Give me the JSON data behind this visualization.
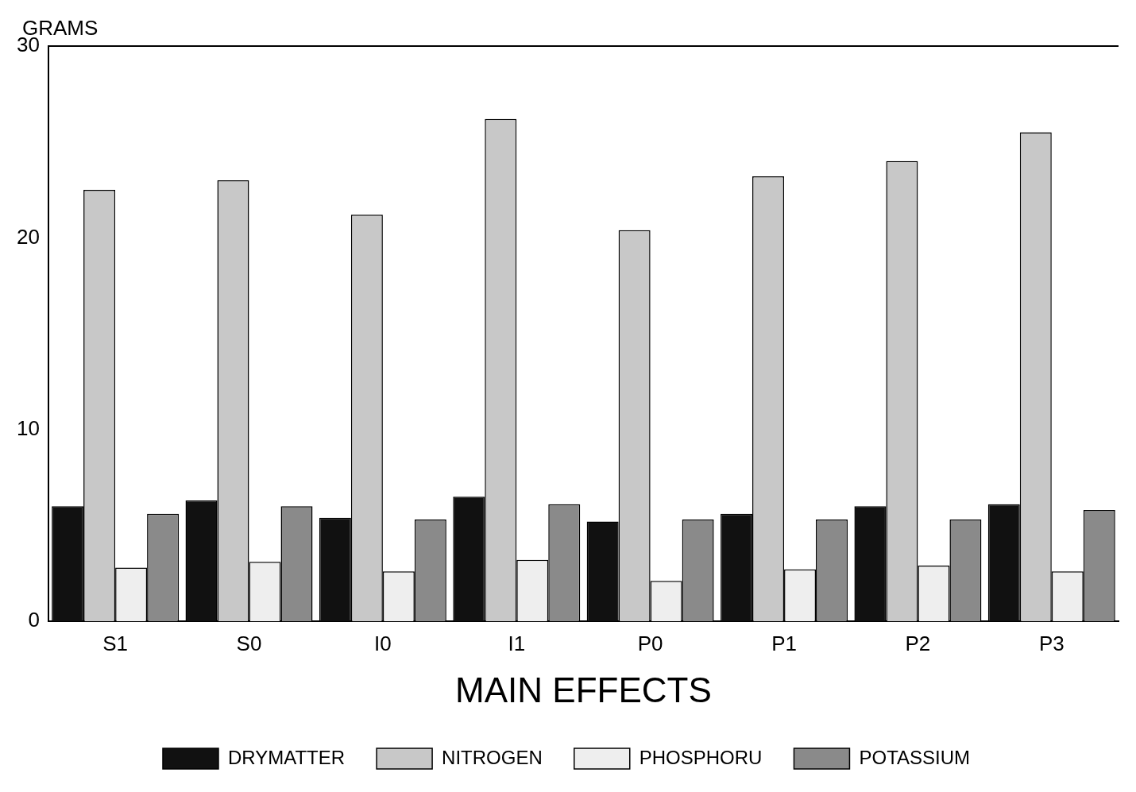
{
  "chart_data": {
    "type": "bar",
    "ylabel": "GRAMS",
    "xlabel": "MAIN EFFECTS",
    "categories": [
      "S1",
      "S0",
      "I0",
      "I1",
      "P0",
      "P1",
      "P2",
      "P3"
    ],
    "series": [
      {
        "name": "DRYMATTER",
        "color": "#111111",
        "values": [
          6.0,
          6.3,
          5.4,
          6.5,
          5.2,
          5.6,
          6.0,
          6.1
        ]
      },
      {
        "name": "NITROGEN",
        "color": "#c8c8c8",
        "values": [
          22.5,
          23.0,
          21.2,
          26.2,
          20.4,
          23.2,
          24.0,
          25.5
        ]
      },
      {
        "name": "PHOSPHORU",
        "color": "#eeeeee",
        "values": [
          2.8,
          3.1,
          2.6,
          3.2,
          2.1,
          2.7,
          2.9,
          2.6
        ]
      },
      {
        "name": "POTASSIUM",
        "color": "#8a8a8a",
        "values": [
          5.6,
          6.0,
          5.3,
          6.1,
          5.3,
          5.3,
          5.3,
          5.8
        ]
      }
    ],
    "ylim": [
      0,
      30
    ],
    "yticks": [
      0,
      10,
      20,
      30
    ],
    "grid": false,
    "legend": "bottom"
  }
}
